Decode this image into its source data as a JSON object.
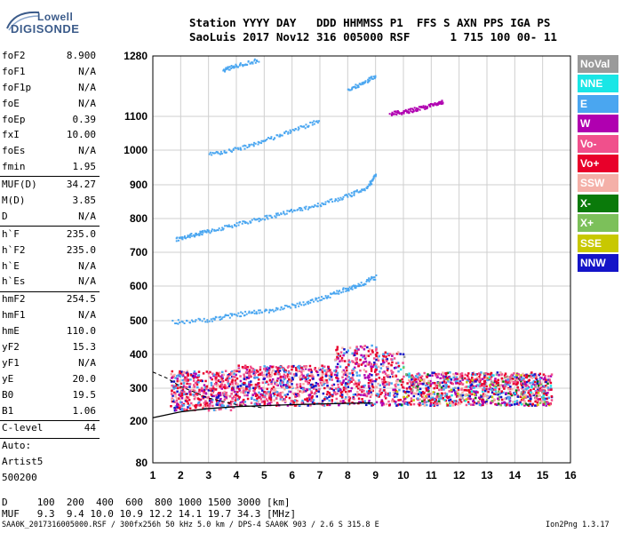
{
  "logo": {
    "line1": "Lowell",
    "line2": "DIGISONDE"
  },
  "header": {
    "row1": "Station YYYY DAY   DDD HHMMSS P1  FFS S AXN PPS IGA PS",
    "row2": "SaoLuis 2017 Nov12 316 005000 RSF      1 715 100 00- 11"
  },
  "params_group1": [
    {
      "name": "foF2",
      "value": "8.900"
    },
    {
      "name": "foF1",
      "value": "N/A"
    },
    {
      "name": "foF1p",
      "value": "N/A"
    },
    {
      "name": "foE",
      "value": "N/A"
    },
    {
      "name": "foEp",
      "value": "0.39"
    },
    {
      "name": "fxI",
      "value": "10.00"
    },
    {
      "name": "foEs",
      "value": "N/A"
    },
    {
      "name": "fmin",
      "value": "1.95"
    }
  ],
  "params_group2": [
    {
      "name": "MUF(D)",
      "value": "34.27"
    },
    {
      "name": "M(D)",
      "value": "3.85"
    },
    {
      "name": "D",
      "value": "N/A"
    }
  ],
  "params_group3": [
    {
      "name": "h`F",
      "value": "235.0"
    },
    {
      "name": "h`F2",
      "value": "235.0"
    },
    {
      "name": "h`E",
      "value": "N/A"
    },
    {
      "name": "h`Es",
      "value": "N/A"
    }
  ],
  "params_group4": [
    {
      "name": "hmF2",
      "value": "254.5"
    },
    {
      "name": "hmF1",
      "value": "N/A"
    },
    {
      "name": "hmE",
      "value": "110.0"
    },
    {
      "name": "yF2",
      "value": "15.3"
    },
    {
      "name": "yF1",
      "value": "N/A"
    },
    {
      "name": "yE",
      "value": "20.0"
    },
    {
      "name": "B0",
      "value": "19.5"
    },
    {
      "name": "B1",
      "value": "1.06"
    }
  ],
  "clevel": {
    "name": "C-level",
    "value": "44"
  },
  "notes": [
    "Auto:",
    "Artist5",
    "500200"
  ],
  "legend": [
    {
      "label": "NoVal",
      "color": "#9a9a9a"
    },
    {
      "label": "NNE",
      "color": "#19e6e6"
    },
    {
      "label": "E",
      "color": "#4aa6f0"
    },
    {
      "label": "W",
      "color": "#b000b0"
    },
    {
      "label": "Vo-",
      "color": "#f0508c"
    },
    {
      "label": "Vo+",
      "color": "#e8002a"
    },
    {
      "label": "SSW",
      "color": "#f4b0a8"
    },
    {
      "label": "X-",
      "color": "#0a7a0a"
    },
    {
      "label": "X+",
      "color": "#7cc05a"
    },
    {
      "label": "SSE",
      "color": "#c8c800"
    },
    {
      "label": "NNW",
      "color": "#1414c8"
    }
  ],
  "chart_data": {
    "type": "scatter",
    "title": "",
    "x_ticks": [
      "1",
      "2",
      "3",
      "4",
      "5",
      "6",
      "7",
      "8",
      "9",
      "10",
      "11",
      "12",
      "13",
      "14",
      "15",
      "16"
    ],
    "y_ticks": [
      "80",
      "200",
      "300",
      "400",
      "500",
      "600",
      "700",
      "800",
      "900",
      "1000",
      "1100",
      "1280"
    ],
    "xlim": [
      1,
      16
    ],
    "ylim": [
      80,
      1280
    ],
    "series": [
      {
        "name": "E",
        "color": "#4aa6f0",
        "traces": [
          {
            "x": [
              1.7,
              3,
              4,
              5,
              6,
              7,
              7.8,
              8.4,
              9
            ],
            "y": [
              498,
              505,
              520,
              530,
              545,
              565,
              590,
              605,
              630
            ]
          },
          {
            "x": [
              1.8,
              2.5,
              3,
              4,
              5,
              6,
              7,
              8,
              8.7,
              9
            ],
            "y": [
              740,
              755,
              765,
              785,
              805,
              825,
              845,
              870,
              895,
              930
            ]
          },
          {
            "x": [
              3,
              4,
              5,
              6,
              7
            ],
            "y": [
              990,
              1005,
              1030,
              1060,
              1090
            ]
          },
          {
            "x": [
              8,
              8.5,
              9
            ],
            "y": [
              1180,
              1200,
              1225
            ]
          },
          {
            "x": [
              3.5,
              4,
              4.8
            ],
            "y": [
              1240,
              1255,
              1270
            ]
          }
        ]
      },
      {
        "name": "W",
        "color": "#b000b0",
        "traces": [
          {
            "x": [
              9.5,
              10,
              10.5,
              11,
              11.4
            ],
            "y": [
              1110,
              1115,
              1125,
              1135,
              1145
            ]
          }
        ]
      }
    ],
    "dense_band": {
      "x_start": 1.6,
      "x_end": 15.3,
      "y_low": 250,
      "y_high": 350
    },
    "trace_curve": {
      "x": [
        1,
        2,
        3,
        4,
        5,
        6,
        7,
        8,
        8.9
      ],
      "y": [
        210,
        228,
        238,
        244,
        247,
        250,
        252,
        254,
        255
      ]
    },
    "dashed_curve": {
      "x": [
        1,
        1.5,
        2,
        3,
        4,
        5
      ],
      "y": [
        348,
        330,
        305,
        270,
        250,
        240
      ]
    }
  },
  "footer": {
    "d_row": "D     100  200  400  600  800 1000 1500 3000 [km]",
    "muf_row": "MUF   9.3  9.4 10.0 10.9 12.2 14.1 19.7 34.3 [MHz]",
    "info": "SAA0K_2017316005000.RSF / 300fx256h 50 kHz 5.0 km / DPS-4 SAA0K 903 / 2.6 S 315.8 E",
    "version": "Ion2Png 1.3.17"
  }
}
